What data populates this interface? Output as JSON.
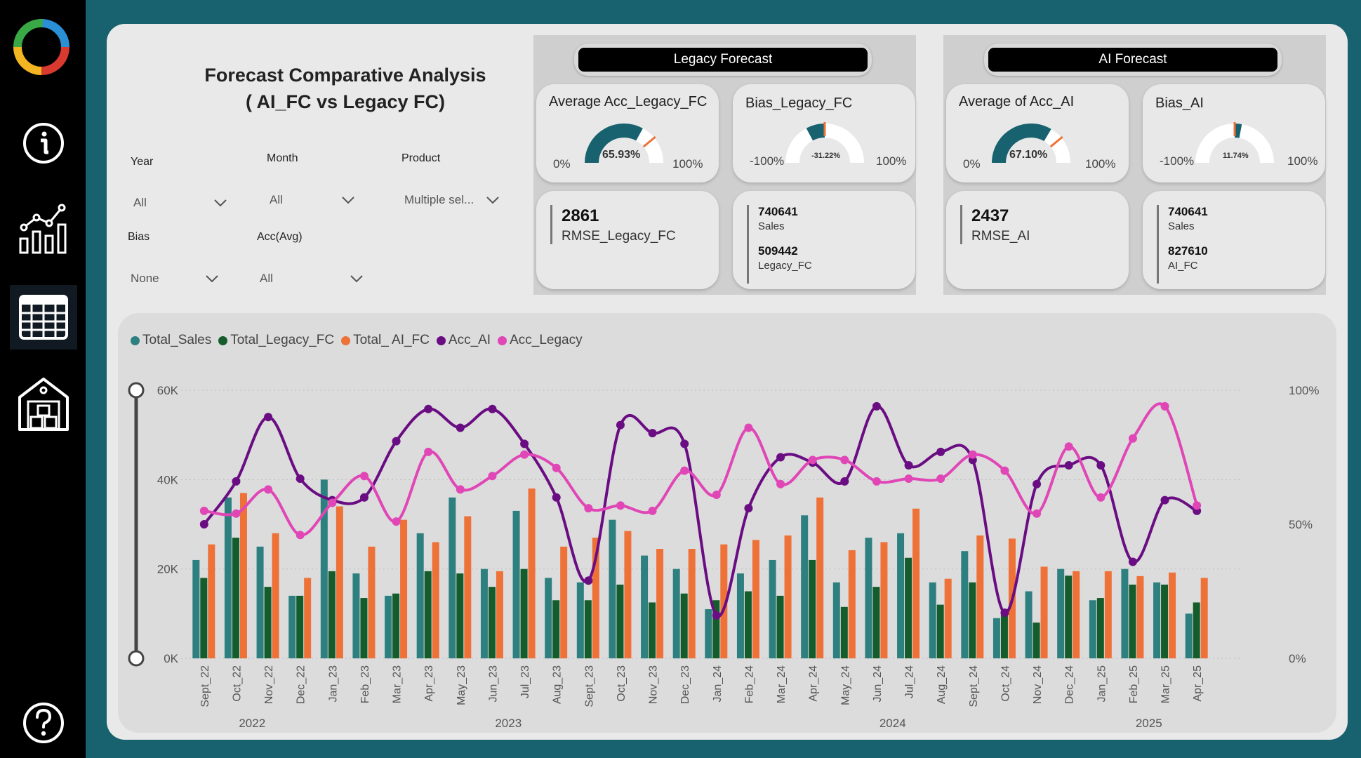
{
  "header": {
    "title_line1": "Forecast Comparative Analysis",
    "title_line2": "( AI_FC vs Legacy FC)"
  },
  "nav": {
    "items": [
      "logo",
      "info-icon",
      "chart-icon",
      "table-icon",
      "warehouse-icon",
      "help-icon"
    ],
    "active": "table-icon"
  },
  "filters": {
    "year": {
      "label": "Year",
      "value": "All"
    },
    "month": {
      "label": "Month",
      "value": "All"
    },
    "product": {
      "label": "Product",
      "value": "Multiple sel..."
    },
    "bias": {
      "label": "Bias",
      "value": "None"
    },
    "acc": {
      "label": "Acc(Avg)",
      "value": "All"
    }
  },
  "legacy": {
    "group_title": "Legacy Forecast",
    "acc_card": {
      "title": "Average Acc_Legacy_FC",
      "value": "65.93%",
      "fraction": 0.6593,
      "min": "0%",
      "max": "100%"
    },
    "bias_card": {
      "title": "Bias_Legacy_FC",
      "value": "-31.22%",
      "fraction": -0.3122,
      "min": "-100%",
      "max": "100%"
    },
    "rmse": {
      "value": "2861",
      "label": "RMSE_Legacy_FC"
    },
    "sales": {
      "sales_value": "740641",
      "sales_label": "Sales",
      "fc_value": "509442",
      "fc_label": "Legacy_FC"
    }
  },
  "ai": {
    "group_title": "AI Forecast",
    "acc_card": {
      "title": "Average of Acc_AI",
      "value": "67.10%",
      "fraction": 0.671,
      "min": "0%",
      "max": "100%"
    },
    "bias_card": {
      "title": "Bias_AI",
      "value": "11.74%",
      "fraction": 0.1174,
      "min": "-100%",
      "max": "100%"
    },
    "rmse": {
      "value": "2437",
      "label": "RMSE_AI"
    },
    "sales": {
      "sales_value": "740641",
      "sales_label": "Sales",
      "fc_value": "827610",
      "fc_label": "AI_FC"
    }
  },
  "colors": {
    "teal": "#2e8080",
    "dark_green": "#145c2c",
    "orange": "#ee7137",
    "purple": "#6a0d83",
    "pink": "#e046b6",
    "gauge_fill": "#17626e",
    "gauge_track": "#ffffff",
    "gauge_target": "#ee7137"
  },
  "chart_data": {
    "type": "bar",
    "title": "",
    "xlabel": "",
    "ylabel": "",
    "ylim": [
      0,
      60000
    ],
    "y2lim": [
      0,
      100
    ],
    "yticks": [
      "0K",
      "20K",
      "40K",
      "60K"
    ],
    "y2ticks": [
      "0%",
      "50%",
      "100%"
    ],
    "legend_position": "top-left",
    "grid": true,
    "categories": [
      "Sept_22",
      "Oct_22",
      "Nov_22",
      "Dec_22",
      "Jan_23",
      "Feb_23",
      "Mar_23",
      "Apr_23",
      "May_23",
      "Jun_23",
      "Jul_23",
      "Aug_23",
      "Sept_23",
      "Oct_23",
      "Nov_23",
      "Dec_23",
      "Jan_24",
      "Feb_24",
      "Mar_24",
      "Apr_24",
      "May_24",
      "Jun_24",
      "Jul_24",
      "Aug_24",
      "Sept_24",
      "Oct_24",
      "Nov_24",
      "Dec_24",
      "Jan_25",
      "Feb_25",
      "Mar_25",
      "Apr_25"
    ],
    "year_labels": [
      {
        "label": "2022",
        "from": 0,
        "to": 3
      },
      {
        "label": "2023",
        "from": 4,
        "to": 15
      },
      {
        "label": "2024",
        "from": 16,
        "to": 27
      },
      {
        "label": "2025",
        "from": 28,
        "to": 31
      }
    ],
    "series": [
      {
        "name": "Total_Sales",
        "kind": "bar",
        "axis": "left",
        "values": [
          22000,
          36000,
          25000,
          14000,
          40000,
          19000,
          14000,
          28000,
          36000,
          20000,
          33000,
          18000,
          17000,
          31000,
          23000,
          20000,
          11000,
          19000,
          22000,
          32000,
          17000,
          27000,
          28000,
          17000,
          24000,
          9000,
          15000,
          20000,
          13000,
          20000,
          17000,
          10000
        ]
      },
      {
        "name": "Total_Legacy_FC",
        "kind": "bar",
        "axis": "left",
        "values": [
          18000,
          27000,
          16000,
          14000,
          19500,
          13500,
          14500,
          19500,
          19000,
          16000,
          20000,
          13000,
          13000,
          16500,
          12500,
          14500,
          13000,
          15000,
          14000,
          22000,
          11500,
          16000,
          22500,
          12000,
          17000,
          10000,
          8000,
          18500,
          13500,
          16500,
          16500,
          12500
        ]
      },
      {
        "name": "Total_ AI_FC",
        "kind": "bar",
        "axis": "left",
        "values": [
          25500,
          37000,
          28000,
          18000,
          34000,
          25000,
          31000,
          26000,
          31800,
          19500,
          38000,
          25000,
          27000,
          28500,
          24500,
          24500,
          25500,
          26500,
          27500,
          36000,
          24200,
          26000,
          33500,
          17800,
          27500,
          26800,
          20500,
          19500,
          19500,
          18400,
          19200,
          18000
        ]
      },
      {
        "name": "Acc_AI",
        "kind": "line",
        "axis": "right",
        "values": [
          50,
          66,
          90,
          67,
          59,
          60,
          81,
          93,
          86,
          93,
          80,
          60,
          29,
          87,
          84,
          80,
          16,
          56,
          75,
          73,
          66,
          94,
          72,
          77,
          74,
          17,
          65,
          72,
          72,
          36,
          59,
          55
        ]
      },
      {
        "name": "Acc_Legacy",
        "kind": "line",
        "axis": "right",
        "values": [
          55,
          54,
          63,
          46,
          58,
          68,
          51,
          77,
          63,
          68,
          76,
          71,
          56,
          57,
          55,
          70,
          61,
          86,
          65,
          74,
          74,
          66,
          67,
          67,
          76,
          70,
          54,
          79,
          60,
          82,
          94,
          57
        ]
      }
    ]
  }
}
